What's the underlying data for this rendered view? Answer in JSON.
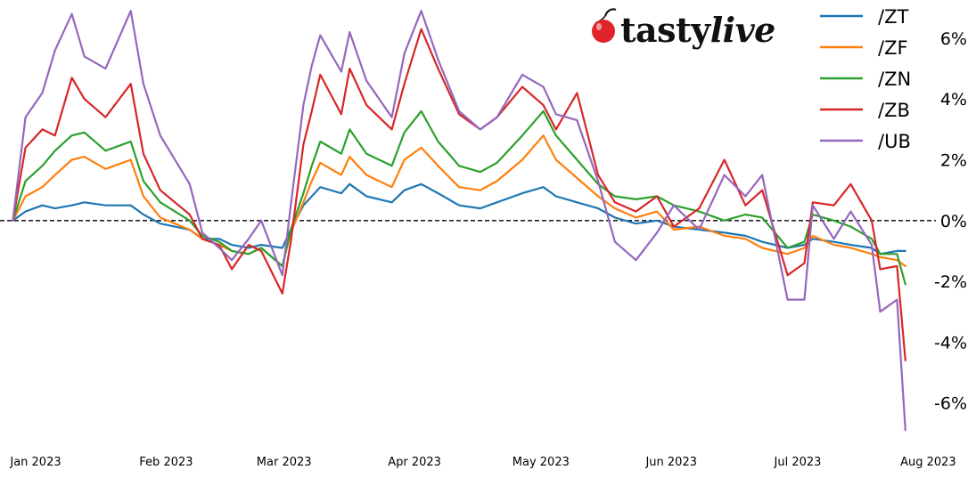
{
  "brand": {
    "name_part1": "tasty",
    "name_part2": "live",
    "logo_icon": "cherry-icon",
    "logo_color": "#e0242a"
  },
  "chart_data": {
    "type": "line",
    "title": "",
    "xlabel": "",
    "ylabel": "",
    "x_ticks": [
      "Jan 2023",
      "Feb 2023",
      "Mar 2023",
      "Apr 2023",
      "May 2023",
      "Jun 2023",
      "Jul 2023",
      "Aug 2023"
    ],
    "y_ticks": [
      "6%",
      "4%",
      "2%",
      "0%",
      "-2%",
      "-4%",
      "-6%"
    ],
    "y_tick_values": [
      6,
      4,
      2,
      0,
      -2,
      -4,
      -6
    ],
    "ylim": [
      -7.3,
      7.2
    ],
    "xlim": [
      "2023-01-01",
      "2023-08-06"
    ],
    "zero_line": "dashed",
    "grid": false,
    "legend_position": "top-right",
    "series": [
      {
        "name": "/ZT",
        "color": "#1f77b4",
        "points": [
          [
            "2023-01-03",
            0.0
          ],
          [
            "2023-01-06",
            0.3
          ],
          [
            "2023-01-10",
            0.5
          ],
          [
            "2023-01-13",
            0.4
          ],
          [
            "2023-01-17",
            0.5
          ],
          [
            "2023-01-20",
            0.6
          ],
          [
            "2023-01-25",
            0.5
          ],
          [
            "2023-01-31",
            0.5
          ],
          [
            "2023-02-03",
            0.2
          ],
          [
            "2023-02-07",
            -0.1
          ],
          [
            "2023-02-14",
            -0.3
          ],
          [
            "2023-02-17",
            -0.6
          ],
          [
            "2023-02-21",
            -0.6
          ],
          [
            "2023-02-24",
            -0.8
          ],
          [
            "2023-02-28",
            -0.9
          ],
          [
            "2023-03-03",
            -0.8
          ],
          [
            "2023-03-08",
            -0.9
          ],
          [
            "2023-03-10",
            -0.3
          ],
          [
            "2023-03-13",
            0.5
          ],
          [
            "2023-03-15",
            0.8
          ],
          [
            "2023-03-17",
            1.1
          ],
          [
            "2023-03-22",
            0.9
          ],
          [
            "2023-03-24",
            1.2
          ],
          [
            "2023-03-28",
            0.8
          ],
          [
            "2023-04-03",
            0.6
          ],
          [
            "2023-04-06",
            1.0
          ],
          [
            "2023-04-10",
            1.2
          ],
          [
            "2023-04-14",
            0.9
          ],
          [
            "2023-04-19",
            0.5
          ],
          [
            "2023-04-24",
            0.4
          ],
          [
            "2023-04-28",
            0.6
          ],
          [
            "2023-05-04",
            0.9
          ],
          [
            "2023-05-09",
            1.1
          ],
          [
            "2023-05-12",
            0.8
          ],
          [
            "2023-05-17",
            0.6
          ],
          [
            "2023-05-22",
            0.4
          ],
          [
            "2023-05-26",
            0.1
          ],
          [
            "2023-05-31",
            -0.1
          ],
          [
            "2023-06-05",
            0.0
          ],
          [
            "2023-06-09",
            -0.2
          ],
          [
            "2023-06-15",
            -0.3
          ],
          [
            "2023-06-21",
            -0.4
          ],
          [
            "2023-06-26",
            -0.5
          ],
          [
            "2023-06-30",
            -0.7
          ],
          [
            "2023-07-06",
            -0.9
          ],
          [
            "2023-07-10",
            -0.8
          ],
          [
            "2023-07-12",
            -0.6
          ],
          [
            "2023-07-17",
            -0.7
          ],
          [
            "2023-07-21",
            -0.8
          ],
          [
            "2023-07-26",
            -0.9
          ],
          [
            "2023-07-28",
            -1.1
          ],
          [
            "2023-08-01",
            -1.0
          ],
          [
            "2023-08-03",
            -1.0
          ]
        ]
      },
      {
        "name": "/ZF",
        "color": "#ff7f0e",
        "points": [
          [
            "2023-01-03",
            0.0
          ],
          [
            "2023-01-06",
            0.8
          ],
          [
            "2023-01-10",
            1.1
          ],
          [
            "2023-01-13",
            1.5
          ],
          [
            "2023-01-17",
            2.0
          ],
          [
            "2023-01-20",
            2.1
          ],
          [
            "2023-01-25",
            1.7
          ],
          [
            "2023-01-31",
            2.0
          ],
          [
            "2023-02-03",
            0.8
          ],
          [
            "2023-02-07",
            0.1
          ],
          [
            "2023-02-14",
            -0.3
          ],
          [
            "2023-02-17",
            -0.6
          ],
          [
            "2023-02-21",
            -0.8
          ],
          [
            "2023-02-24",
            -1.0
          ],
          [
            "2023-02-28",
            -1.1
          ],
          [
            "2023-03-03",
            -0.9
          ],
          [
            "2023-03-08",
            -1.5
          ],
          [
            "2023-03-10",
            -0.4
          ],
          [
            "2023-03-13",
            0.6
          ],
          [
            "2023-03-15",
            1.3
          ],
          [
            "2023-03-17",
            1.9
          ],
          [
            "2023-03-22",
            1.5
          ],
          [
            "2023-03-24",
            2.1
          ],
          [
            "2023-03-28",
            1.5
          ],
          [
            "2023-04-03",
            1.1
          ],
          [
            "2023-04-06",
            2.0
          ],
          [
            "2023-04-10",
            2.4
          ],
          [
            "2023-04-14",
            1.8
          ],
          [
            "2023-04-19",
            1.1
          ],
          [
            "2023-04-24",
            1.0
          ],
          [
            "2023-04-28",
            1.3
          ],
          [
            "2023-05-04",
            2.0
          ],
          [
            "2023-05-09",
            2.8
          ],
          [
            "2023-05-12",
            2.0
          ],
          [
            "2023-05-17",
            1.4
          ],
          [
            "2023-05-22",
            0.8
          ],
          [
            "2023-05-26",
            0.4
          ],
          [
            "2023-05-31",
            0.1
          ],
          [
            "2023-06-05",
            0.3
          ],
          [
            "2023-06-09",
            -0.3
          ],
          [
            "2023-06-15",
            -0.2
          ],
          [
            "2023-06-21",
            -0.5
          ],
          [
            "2023-06-26",
            -0.6
          ],
          [
            "2023-06-30",
            -0.9
          ],
          [
            "2023-07-06",
            -1.1
          ],
          [
            "2023-07-10",
            -0.9
          ],
          [
            "2023-07-12",
            -0.5
          ],
          [
            "2023-07-17",
            -0.8
          ],
          [
            "2023-07-21",
            -0.9
          ],
          [
            "2023-07-26",
            -1.1
          ],
          [
            "2023-07-28",
            -1.2
          ],
          [
            "2023-08-01",
            -1.3
          ],
          [
            "2023-08-03",
            -1.5
          ]
        ]
      },
      {
        "name": "/ZN",
        "color": "#2ca02c",
        "points": [
          [
            "2023-01-03",
            0.0
          ],
          [
            "2023-01-06",
            1.3
          ],
          [
            "2023-01-10",
            1.8
          ],
          [
            "2023-01-13",
            2.3
          ],
          [
            "2023-01-17",
            2.8
          ],
          [
            "2023-01-20",
            2.9
          ],
          [
            "2023-01-25",
            2.3
          ],
          [
            "2023-01-31",
            2.6
          ],
          [
            "2023-02-03",
            1.3
          ],
          [
            "2023-02-07",
            0.6
          ],
          [
            "2023-02-14",
            0.0
          ],
          [
            "2023-02-17",
            -0.5
          ],
          [
            "2023-02-21",
            -0.7
          ],
          [
            "2023-02-24",
            -1.0
          ],
          [
            "2023-02-28",
            -1.1
          ],
          [
            "2023-03-03",
            -0.9
          ],
          [
            "2023-03-08",
            -1.5
          ],
          [
            "2023-03-10",
            -0.3
          ],
          [
            "2023-03-13",
            0.9
          ],
          [
            "2023-03-15",
            1.8
          ],
          [
            "2023-03-17",
            2.6
          ],
          [
            "2023-03-22",
            2.2
          ],
          [
            "2023-03-24",
            3.0
          ],
          [
            "2023-03-28",
            2.2
          ],
          [
            "2023-04-03",
            1.8
          ],
          [
            "2023-04-06",
            2.9
          ],
          [
            "2023-04-10",
            3.6
          ],
          [
            "2023-04-14",
            2.6
          ],
          [
            "2023-04-19",
            1.8
          ],
          [
            "2023-04-24",
            1.6
          ],
          [
            "2023-04-28",
            1.9
          ],
          [
            "2023-05-04",
            2.8
          ],
          [
            "2023-05-09",
            3.6
          ],
          [
            "2023-05-12",
            2.8
          ],
          [
            "2023-05-17",
            2.0
          ],
          [
            "2023-05-22",
            1.2
          ],
          [
            "2023-05-26",
            0.8
          ],
          [
            "2023-05-31",
            0.7
          ],
          [
            "2023-06-05",
            0.8
          ],
          [
            "2023-06-09",
            0.5
          ],
          [
            "2023-06-15",
            0.3
          ],
          [
            "2023-06-21",
            0.0
          ],
          [
            "2023-06-26",
            0.2
          ],
          [
            "2023-06-30",
            0.1
          ],
          [
            "2023-07-06",
            -0.9
          ],
          [
            "2023-07-10",
            -0.7
          ],
          [
            "2023-07-12",
            0.2
          ],
          [
            "2023-07-17",
            0.0
          ],
          [
            "2023-07-21",
            -0.2
          ],
          [
            "2023-07-26",
            -0.6
          ],
          [
            "2023-07-28",
            -1.1
          ],
          [
            "2023-08-01",
            -1.1
          ],
          [
            "2023-08-03",
            -2.1
          ]
        ]
      },
      {
        "name": "/ZB",
        "color": "#d62728",
        "points": [
          [
            "2023-01-03",
            0.0
          ],
          [
            "2023-01-06",
            2.4
          ],
          [
            "2023-01-10",
            3.0
          ],
          [
            "2023-01-13",
            2.8
          ],
          [
            "2023-01-17",
            4.7
          ],
          [
            "2023-01-20",
            4.0
          ],
          [
            "2023-01-25",
            3.4
          ],
          [
            "2023-01-31",
            4.5
          ],
          [
            "2023-02-03",
            2.2
          ],
          [
            "2023-02-07",
            1.0
          ],
          [
            "2023-02-14",
            0.2
          ],
          [
            "2023-02-17",
            -0.6
          ],
          [
            "2023-02-21",
            -0.8
          ],
          [
            "2023-02-24",
            -1.6
          ],
          [
            "2023-02-28",
            -0.8
          ],
          [
            "2023-03-03",
            -1.0
          ],
          [
            "2023-03-08",
            -2.4
          ],
          [
            "2023-03-10",
            -0.7
          ],
          [
            "2023-03-13",
            2.5
          ],
          [
            "2023-03-15",
            3.6
          ],
          [
            "2023-03-17",
            4.8
          ],
          [
            "2023-03-22",
            3.5
          ],
          [
            "2023-03-24",
            5.0
          ],
          [
            "2023-03-28",
            3.8
          ],
          [
            "2023-04-03",
            3.0
          ],
          [
            "2023-04-06",
            4.5
          ],
          [
            "2023-04-10",
            6.3
          ],
          [
            "2023-04-14",
            5.0
          ],
          [
            "2023-04-19",
            3.5
          ],
          [
            "2023-04-24",
            3.0
          ],
          [
            "2023-04-28",
            3.4
          ],
          [
            "2023-05-04",
            4.4
          ],
          [
            "2023-05-09",
            3.8
          ],
          [
            "2023-05-12",
            3.0
          ],
          [
            "2023-05-17",
            4.2
          ],
          [
            "2023-05-22",
            1.5
          ],
          [
            "2023-05-26",
            0.6
          ],
          [
            "2023-05-31",
            0.3
          ],
          [
            "2023-06-05",
            0.8
          ],
          [
            "2023-06-09",
            -0.2
          ],
          [
            "2023-06-15",
            0.4
          ],
          [
            "2023-06-21",
            2.0
          ],
          [
            "2023-06-26",
            0.5
          ],
          [
            "2023-06-30",
            1.0
          ],
          [
            "2023-07-06",
            -1.8
          ],
          [
            "2023-07-10",
            -1.4
          ],
          [
            "2023-07-12",
            0.6
          ],
          [
            "2023-07-17",
            0.5
          ],
          [
            "2023-07-21",
            1.2
          ],
          [
            "2023-07-26",
            0.0
          ],
          [
            "2023-07-28",
            -1.6
          ],
          [
            "2023-08-01",
            -1.5
          ],
          [
            "2023-08-03",
            -4.6
          ]
        ]
      },
      {
        "name": "/UB",
        "color": "#9467bd",
        "points": [
          [
            "2023-01-03",
            0.0
          ],
          [
            "2023-01-06",
            3.4
          ],
          [
            "2023-01-10",
            4.2
          ],
          [
            "2023-01-13",
            5.6
          ],
          [
            "2023-01-17",
            6.8
          ],
          [
            "2023-01-20",
            5.4
          ],
          [
            "2023-01-25",
            5.0
          ],
          [
            "2023-01-31",
            6.9
          ],
          [
            "2023-02-03",
            4.5
          ],
          [
            "2023-02-07",
            2.8
          ],
          [
            "2023-02-14",
            1.2
          ],
          [
            "2023-02-17",
            -0.4
          ],
          [
            "2023-02-21",
            -0.9
          ],
          [
            "2023-02-24",
            -1.3
          ],
          [
            "2023-02-28",
            -0.6
          ],
          [
            "2023-03-03",
            0.0
          ],
          [
            "2023-03-08",
            -1.8
          ],
          [
            "2023-03-10",
            0.5
          ],
          [
            "2023-03-13",
            3.8
          ],
          [
            "2023-03-15",
            5.1
          ],
          [
            "2023-03-17",
            6.1
          ],
          [
            "2023-03-22",
            4.9
          ],
          [
            "2023-03-24",
            6.2
          ],
          [
            "2023-03-28",
            4.6
          ],
          [
            "2023-04-03",
            3.4
          ],
          [
            "2023-04-06",
            5.5
          ],
          [
            "2023-04-10",
            6.9
          ],
          [
            "2023-04-14",
            5.3
          ],
          [
            "2023-04-19",
            3.6
          ],
          [
            "2023-04-24",
            3.0
          ],
          [
            "2023-04-28",
            3.4
          ],
          [
            "2023-05-04",
            4.8
          ],
          [
            "2023-05-09",
            4.4
          ],
          [
            "2023-05-12",
            3.5
          ],
          [
            "2023-05-17",
            3.3
          ],
          [
            "2023-05-22",
            1.3
          ],
          [
            "2023-05-26",
            -0.7
          ],
          [
            "2023-05-31",
            -1.3
          ],
          [
            "2023-06-05",
            -0.4
          ],
          [
            "2023-06-09",
            0.5
          ],
          [
            "2023-06-15",
            -0.3
          ],
          [
            "2023-06-21",
            1.5
          ],
          [
            "2023-06-26",
            0.8
          ],
          [
            "2023-06-30",
            1.5
          ],
          [
            "2023-07-06",
            -2.6
          ],
          [
            "2023-07-10",
            -2.6
          ],
          [
            "2023-07-12",
            0.5
          ],
          [
            "2023-07-17",
            -0.6
          ],
          [
            "2023-07-21",
            0.3
          ],
          [
            "2023-07-26",
            -0.8
          ],
          [
            "2023-07-28",
            -3.0
          ],
          [
            "2023-08-01",
            -2.6
          ],
          [
            "2023-08-03",
            -6.9
          ]
        ]
      }
    ]
  }
}
